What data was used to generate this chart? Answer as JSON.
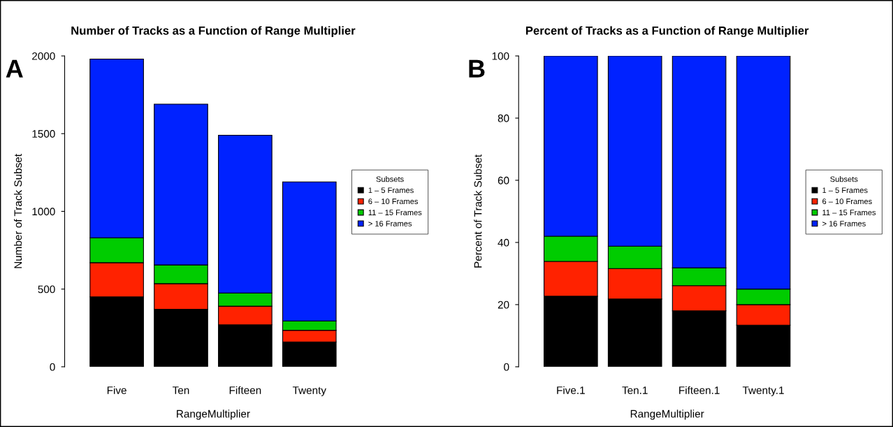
{
  "chart_data": [
    {
      "type": "bar",
      "stacked": true,
      "title": "Number of Tracks as a Function of Range Multiplier",
      "xlabel": "RangeMultiplier",
      "ylabel": "Number of Track Subset",
      "categories": [
        "Five",
        "Ten",
        "Fifteen",
        "Twenty"
      ],
      "ylim": [
        0,
        2000
      ],
      "yticks": [
        0,
        500,
        1000,
        1500,
        2000
      ],
      "legend": "right",
      "legend_title": "Subsets",
      "annotations": [
        "A"
      ],
      "series": [
        {
          "name": "1 – 5 Frames",
          "color": "#000000",
          "values": [
            450,
            370,
            270,
            160
          ]
        },
        {
          "name": "6 – 10 Frames",
          "color": "#ff2200",
          "values": [
            220,
            165,
            120,
            75
          ]
        },
        {
          "name": "11 – 15 Frames",
          "color": "#00cc00",
          "values": [
            160,
            120,
            85,
            60
          ]
        },
        {
          "name": "> 16 Frames",
          "color": "#0022ff",
          "values": [
            1150,
            1035,
            1015,
            895
          ]
        }
      ]
    },
    {
      "type": "bar",
      "stacked": true,
      "title": "Percent of Tracks as a Function of Range Multiplier",
      "xlabel": "RangeMultiplier",
      "ylabel": "Percent of Track Subset",
      "categories": [
        "Five.1",
        "Ten.1",
        "Fifteen.1",
        "Twenty.1"
      ],
      "ylim": [
        0,
        100
      ],
      "yticks": [
        0,
        20,
        40,
        60,
        80,
        100
      ],
      "legend": "right",
      "legend_title": "Subsets",
      "annotations": [
        "B"
      ],
      "series": [
        {
          "name": "1 – 5 Frames",
          "color": "#000000",
          "values": [
            22.7,
            21.8,
            18,
            13.4
          ]
        },
        {
          "name": "6 – 10 Frames",
          "color": "#ff2200",
          "values": [
            11.2,
            9.8,
            8.1,
            6.6
          ]
        },
        {
          "name": "11 – 15 Frames",
          "color": "#00cc00",
          "values": [
            8.1,
            7.2,
            5.7,
            5
          ]
        },
        {
          "name": "> 16 Frames",
          "color": "#0022ff",
          "values": [
            58,
            61.2,
            68.2,
            75
          ]
        }
      ]
    }
  ]
}
